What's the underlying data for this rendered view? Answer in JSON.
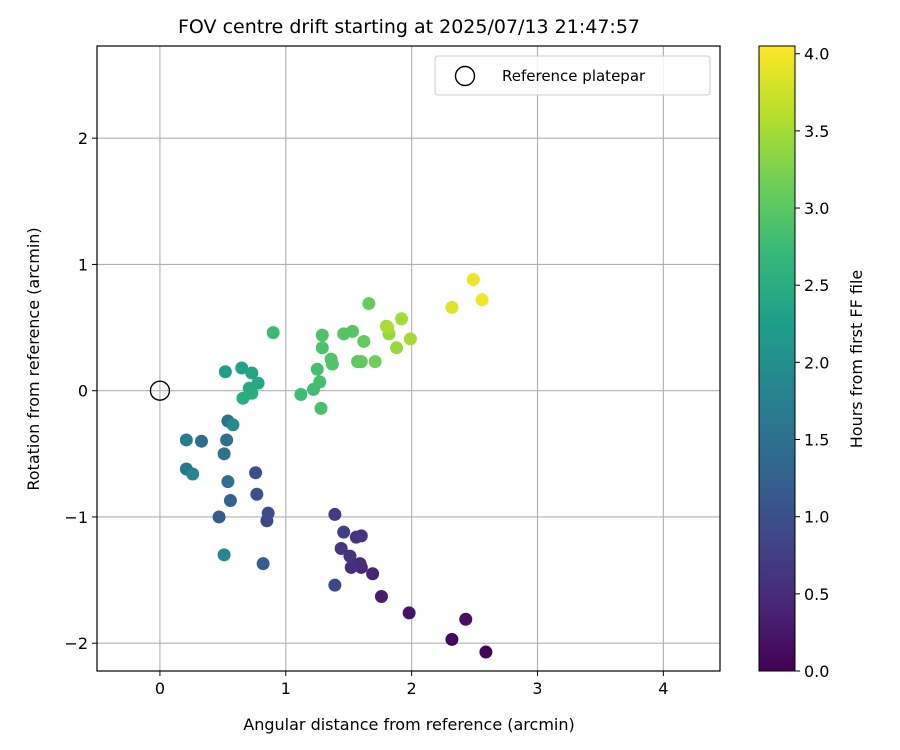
{
  "chart_data": {
    "type": "scatter",
    "title": "FOV centre drift starting at 2025/07/13 21:47:57",
    "xlabel": "Angular distance from reference (arcmin)",
    "ylabel": "Rotation from reference (arcmin)",
    "xlim": [
      -0.5,
      4.45
    ],
    "ylim": [
      -2.22,
      2.73
    ],
    "xticks": [
      0,
      1,
      2,
      3,
      4
    ],
    "yticks": [
      -2,
      -1,
      0,
      1,
      2
    ],
    "xtick_labels": [
      "0",
      "1",
      "2",
      "3",
      "4"
    ],
    "ytick_labels": [
      "−2",
      "−1",
      "0",
      "1",
      "2"
    ],
    "grid": true,
    "legend": {
      "placement": "upper right",
      "entries": [
        {
          "label": "Reference platepar",
          "marker": "open-circle",
          "x": 0,
          "y": 0
        }
      ]
    },
    "colorbar": {
      "label": "Hours from first FF file",
      "colormap": "viridis",
      "range": [
        0.0,
        4.05
      ],
      "ticks": [
        0.0,
        0.5,
        1.0,
        1.5,
        2.0,
        2.5,
        3.0,
        3.5,
        4.0
      ],
      "tick_labels": [
        "0.0",
        "0.5",
        "1.0",
        "1.5",
        "2.0",
        "2.5",
        "3.0",
        "3.5",
        "4.0"
      ],
      "stops": [
        "#440154",
        "#482878",
        "#3e4989",
        "#31688e",
        "#26828e",
        "#1f9e89",
        "#35b779",
        "#6ece58",
        "#b5de2b",
        "#fde725"
      ]
    },
    "points": [
      {
        "x": 2.59,
        "y": -2.07,
        "t": 0.05
      },
      {
        "x": 2.32,
        "y": -1.97,
        "t": 0.1
      },
      {
        "x": 2.43,
        "y": -1.81,
        "t": 0.18
      },
      {
        "x": 1.98,
        "y": -1.76,
        "t": 0.25
      },
      {
        "x": 1.76,
        "y": -1.63,
        "t": 0.32
      },
      {
        "x": 1.69,
        "y": -1.45,
        "t": 0.4
      },
      {
        "x": 1.6,
        "y": -1.4,
        "t": 0.45
      },
      {
        "x": 1.59,
        "y": -1.37,
        "t": 0.5
      },
      {
        "x": 1.52,
        "y": -1.4,
        "t": 0.55
      },
      {
        "x": 1.51,
        "y": -1.31,
        "t": 0.6
      },
      {
        "x": 1.44,
        "y": -1.25,
        "t": 0.66
      },
      {
        "x": 1.56,
        "y": -1.16,
        "t": 0.62
      },
      {
        "x": 1.6,
        "y": -1.15,
        "t": 0.65
      },
      {
        "x": 1.46,
        "y": -1.12,
        "t": 0.78
      },
      {
        "x": 1.39,
        "y": -0.98,
        "t": 0.72
      },
      {
        "x": 1.39,
        "y": -1.54,
        "t": 0.88
      },
      {
        "x": 0.85,
        "y": -1.03,
        "t": 0.9
      },
      {
        "x": 0.86,
        "y": -0.97,
        "t": 0.95
      },
      {
        "x": 0.77,
        "y": -0.82,
        "t": 1.0
      },
      {
        "x": 0.76,
        "y": -0.65,
        "t": 0.98
      },
      {
        "x": 0.82,
        "y": -1.37,
        "t": 1.2
      },
      {
        "x": 0.47,
        "y": -1.0,
        "t": 1.15
      },
      {
        "x": 0.56,
        "y": -0.87,
        "t": 1.28
      },
      {
        "x": 0.54,
        "y": -0.72,
        "t": 1.45
      },
      {
        "x": 0.51,
        "y": -0.5,
        "t": 1.52
      },
      {
        "x": 0.53,
        "y": -0.39,
        "t": 1.48
      },
      {
        "x": 0.33,
        "y": -0.4,
        "t": 1.45
      },
      {
        "x": 0.54,
        "y": -0.24,
        "t": 1.55
      },
      {
        "x": 0.58,
        "y": -0.27,
        "t": 1.95
      },
      {
        "x": 0.21,
        "y": -0.39,
        "t": 1.7
      },
      {
        "x": 0.21,
        "y": -0.62,
        "t": 1.58
      },
      {
        "x": 0.26,
        "y": -0.66,
        "t": 1.85
      },
      {
        "x": 0.51,
        "y": -1.3,
        "t": 1.9
      },
      {
        "x": 0.52,
        "y": 0.15,
        "t": 2.25
      },
      {
        "x": 0.65,
        "y": 0.18,
        "t": 2.3
      },
      {
        "x": 0.73,
        "y": 0.14,
        "t": 2.35
      },
      {
        "x": 0.78,
        "y": 0.06,
        "t": 2.4
      },
      {
        "x": 0.71,
        "y": 0.02,
        "t": 2.45
      },
      {
        "x": 0.73,
        "y": -0.02,
        "t": 2.5
      },
      {
        "x": 0.66,
        "y": -0.06,
        "t": 2.52
      },
      {
        "x": 0.9,
        "y": 0.46,
        "t": 2.75
      },
      {
        "x": 1.12,
        "y": -0.03,
        "t": 2.78
      },
      {
        "x": 1.22,
        "y": 0.01,
        "t": 2.8
      },
      {
        "x": 1.27,
        "y": 0.07,
        "t": 2.82
      },
      {
        "x": 1.25,
        "y": 0.17,
        "t": 2.85
      },
      {
        "x": 1.28,
        "y": -0.14,
        "t": 2.86
      },
      {
        "x": 1.29,
        "y": 0.34,
        "t": 2.88
      },
      {
        "x": 1.29,
        "y": 0.44,
        "t": 2.9
      },
      {
        "x": 1.36,
        "y": 0.25,
        "t": 2.92
      },
      {
        "x": 1.37,
        "y": 0.21,
        "t": 2.94
      },
      {
        "x": 1.46,
        "y": 0.45,
        "t": 2.96
      },
      {
        "x": 1.53,
        "y": 0.47,
        "t": 2.98
      },
      {
        "x": 1.57,
        "y": 0.23,
        "t": 3.0
      },
      {
        "x": 1.6,
        "y": 0.23,
        "t": 3.05
      },
      {
        "x": 1.62,
        "y": 0.39,
        "t": 3.08
      },
      {
        "x": 1.66,
        "y": 0.69,
        "t": 3.1
      },
      {
        "x": 1.71,
        "y": 0.23,
        "t": 3.15
      },
      {
        "x": 1.8,
        "y": 0.51,
        "t": 3.45
      },
      {
        "x": 1.82,
        "y": 0.45,
        "t": 3.4
      },
      {
        "x": 1.81,
        "y": 0.5,
        "t": 3.55
      },
      {
        "x": 1.88,
        "y": 0.34,
        "t": 3.42
      },
      {
        "x": 1.92,
        "y": 0.57,
        "t": 3.48
      },
      {
        "x": 1.99,
        "y": 0.41,
        "t": 3.5
      },
      {
        "x": 2.32,
        "y": 0.66,
        "t": 3.85
      },
      {
        "x": 2.49,
        "y": 0.88,
        "t": 3.95
      },
      {
        "x": 2.56,
        "y": 0.72,
        "t": 3.98
      }
    ]
  }
}
